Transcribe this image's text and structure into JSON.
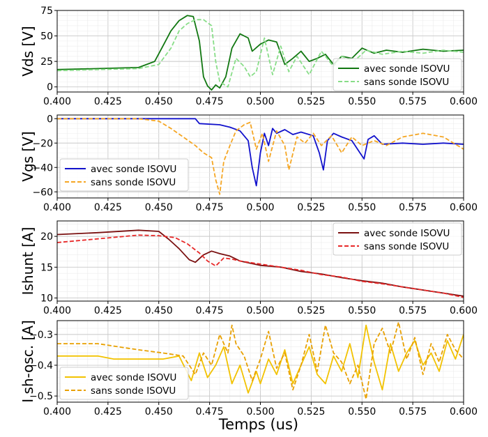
{
  "figure": {
    "xlabel": "Temps (us)",
    "xticks": [
      "0.400",
      "0.425",
      "0.450",
      "0.475",
      "0.500",
      "0.525",
      "0.550",
      "0.575",
      "0.600"
    ]
  },
  "chart_data": [
    {
      "type": "line",
      "ylabel": "Vds [V]",
      "xlim": [
        0.4,
        0.6
      ],
      "ylim": [
        -5,
        75
      ],
      "yticks": [
        "0",
        "25",
        "50",
        "75"
      ],
      "grid": true,
      "legend_position": "right",
      "series": [
        {
          "name": "avec sonde ISOVU",
          "color": "#117711",
          "dash": "solid",
          "x": [
            0.4,
            0.42,
            0.44,
            0.448,
            0.452,
            0.456,
            0.46,
            0.464,
            0.467,
            0.47,
            0.472,
            0.474,
            0.476,
            0.478,
            0.48,
            0.483,
            0.486,
            0.49,
            0.494,
            0.496,
            0.5,
            0.504,
            0.508,
            0.512,
            0.516,
            0.52,
            0.524,
            0.528,
            0.532,
            0.536,
            0.54,
            0.545,
            0.55,
            0.556,
            0.562,
            0.57,
            0.58,
            0.59,
            0.6
          ],
          "y": [
            17,
            18,
            19,
            25,
            40,
            55,
            65,
            70,
            69,
            45,
            10,
            1,
            -3,
            2,
            -1,
            10,
            38,
            52,
            48,
            35,
            42,
            46,
            44,
            22,
            28,
            35,
            25,
            28,
            32,
            22,
            30,
            28,
            38,
            33,
            36,
            34,
            37,
            35,
            36
          ]
        },
        {
          "name": "sans sonde ISOVU",
          "color": "#88dd88",
          "dash": "dashed",
          "x": [
            0.4,
            0.44,
            0.45,
            0.456,
            0.46,
            0.464,
            0.468,
            0.472,
            0.476,
            0.478,
            0.48,
            0.484,
            0.488,
            0.492,
            0.495,
            0.498,
            0.502,
            0.506,
            0.51,
            0.514,
            0.518,
            0.524,
            0.53,
            0.536,
            0.54,
            0.546,
            0.552,
            0.56,
            0.57,
            0.58,
            0.59,
            0.6
          ],
          "y": [
            16,
            18,
            22,
            38,
            55,
            62,
            66,
            66,
            60,
            25,
            5,
            0,
            28,
            20,
            10,
            15,
            48,
            12,
            40,
            15,
            30,
            12,
            35,
            20,
            30,
            25,
            36,
            32,
            35,
            33,
            36,
            34
          ]
        }
      ]
    },
    {
      "type": "line",
      "ylabel": "Vgs [V]",
      "xlim": [
        0.4,
        0.6
      ],
      "ylim": [
        -65,
        3
      ],
      "yticks": [
        "0",
        "−20",
        "−40",
        "−60"
      ],
      "grid": true,
      "legend_position": "lower-left",
      "series": [
        {
          "name": "avec sonde ISOVU",
          "color": "#1111cc",
          "dash": "solid",
          "x": [
            0.4,
            0.44,
            0.46,
            0.468,
            0.47,
            0.48,
            0.485,
            0.49,
            0.494,
            0.496,
            0.498,
            0.5,
            0.502,
            0.504,
            0.506,
            0.508,
            0.512,
            0.516,
            0.52,
            0.526,
            0.529,
            0.531,
            0.533,
            0.536,
            0.54,
            0.545,
            0.549,
            0.551,
            0.553,
            0.556,
            0.56,
            0.57,
            0.58,
            0.59,
            0.6
          ],
          "y": [
            0,
            0,
            0,
            0,
            -4,
            -5,
            -7,
            -10,
            -18,
            -40,
            -55,
            -28,
            -12,
            -22,
            -8,
            -12,
            -9,
            -13,
            -11,
            -14,
            -28,
            -42,
            -18,
            -12,
            -15,
            -18,
            -28,
            -33,
            -17,
            -14,
            -21,
            -20,
            -21,
            -20,
            -21
          ]
        },
        {
          "name": "sans sonde ISOVU",
          "color": "#f5a623",
          "dash": "dashed",
          "x": [
            0.4,
            0.44,
            0.45,
            0.456,
            0.462,
            0.468,
            0.472,
            0.476,
            0.478,
            0.48,
            0.482,
            0.485,
            0.488,
            0.492,
            0.495,
            0.498,
            0.501,
            0.504,
            0.508,
            0.512,
            0.514,
            0.518,
            0.522,
            0.526,
            0.53,
            0.535,
            0.54,
            0.545,
            0.55,
            0.556,
            0.562,
            0.57,
            0.58,
            0.59,
            0.6
          ],
          "y": [
            0,
            0,
            -2,
            -8,
            -15,
            -22,
            -28,
            -32,
            -50,
            -62,
            -35,
            -22,
            -10,
            -5,
            -3,
            -25,
            -12,
            -35,
            -10,
            -22,
            -42,
            -15,
            -20,
            -12,
            -22,
            -14,
            -28,
            -15,
            -22,
            -18,
            -22,
            -15,
            -12,
            -15,
            -25
          ]
        }
      ]
    },
    {
      "type": "line",
      "ylabel": "Ishunt [A]",
      "xlim": [
        0.4,
        0.6
      ],
      "ylim": [
        9.5,
        22.5
      ],
      "yticks": [
        "10",
        "15",
        "20"
      ],
      "grid": true,
      "legend_position": "top-right",
      "series": [
        {
          "name": "avec sonde ISOVU",
          "color": "#7a1010",
          "dash": "solid",
          "x": [
            0.4,
            0.42,
            0.44,
            0.45,
            0.455,
            0.46,
            0.465,
            0.468,
            0.472,
            0.476,
            0.48,
            0.485,
            0.49,
            0.5,
            0.51,
            0.52,
            0.53,
            0.54,
            0.55,
            0.56,
            0.57,
            0.58,
            0.59,
            0.6
          ],
          "y": [
            20.3,
            20.6,
            21.0,
            20.8,
            19.5,
            18.0,
            16.2,
            15.8,
            17.0,
            17.6,
            17.2,
            16.8,
            16.0,
            15.3,
            15.0,
            14.3,
            13.9,
            13.3,
            12.8,
            12.4,
            11.8,
            11.3,
            10.8,
            10.3
          ]
        },
        {
          "name": "sans sonde ISOVU",
          "color": "#e82828",
          "dash": "dashed",
          "x": [
            0.4,
            0.42,
            0.44,
            0.45,
            0.458,
            0.464,
            0.47,
            0.474,
            0.478,
            0.482,
            0.486,
            0.49,
            0.5,
            0.51,
            0.52,
            0.53,
            0.54,
            0.55,
            0.56,
            0.57,
            0.58,
            0.59,
            0.6
          ],
          "y": [
            19.0,
            19.6,
            20.2,
            20.1,
            19.8,
            18.8,
            17.3,
            16.0,
            15.2,
            16.5,
            16.3,
            16.0,
            15.5,
            15.0,
            14.5,
            13.8,
            13.4,
            12.7,
            12.3,
            11.8,
            11.3,
            10.8,
            10.1
          ]
        }
      ]
    },
    {
      "type": "line",
      "ylabel": "I sh-osc. [A]",
      "xlim": [
        0.4,
        0.6
      ],
      "ylim": [
        -0.52,
        -0.255
      ],
      "yticks": [
        "−0.3",
        "−0.4",
        "−0.5"
      ],
      "grid": true,
      "legend_position": "lower-left",
      "series": [
        {
          "name": "avec sonde ISOVU",
          "color": "#f2c200",
          "dash": "solid",
          "x": [
            0.4,
            0.41,
            0.42,
            0.428,
            0.436,
            0.444,
            0.452,
            0.46,
            0.466,
            0.47,
            0.474,
            0.478,
            0.482,
            0.486,
            0.49,
            0.494,
            0.498,
            0.5,
            0.504,
            0.508,
            0.512,
            0.516,
            0.52,
            0.524,
            0.528,
            0.532,
            0.536,
            0.54,
            0.544,
            0.548,
            0.552,
            0.556,
            0.56,
            0.564,
            0.568,
            0.572,
            0.576,
            0.58,
            0.584,
            0.588,
            0.592,
            0.596,
            0.6
          ],
          "y": [
            -0.37,
            -0.37,
            -0.37,
            -0.38,
            -0.38,
            -0.38,
            -0.38,
            -0.37,
            -0.45,
            -0.36,
            -0.44,
            -0.4,
            -0.34,
            -0.46,
            -0.4,
            -0.49,
            -0.42,
            -0.46,
            -0.38,
            -0.43,
            -0.35,
            -0.46,
            -0.4,
            -0.34,
            -0.43,
            -0.46,
            -0.37,
            -0.42,
            -0.33,
            -0.44,
            -0.27,
            -0.39,
            -0.48,
            -0.33,
            -0.42,
            -0.36,
            -0.32,
            -0.4,
            -0.36,
            -0.42,
            -0.32,
            -0.38,
            -0.3
          ]
        },
        {
          "name": "sans sonde ISOVU",
          "color": "#e8a000",
          "dash": "dashed",
          "x": [
            0.4,
            0.42,
            0.44,
            0.452,
            0.462,
            0.468,
            0.472,
            0.476,
            0.48,
            0.484,
            0.486,
            0.488,
            0.492,
            0.496,
            0.5,
            0.504,
            0.508,
            0.512,
            0.516,
            0.52,
            0.524,
            0.528,
            0.532,
            0.536,
            0.54,
            0.544,
            0.548,
            0.552,
            0.556,
            0.56,
            0.564,
            0.568,
            0.572,
            0.576,
            0.58,
            0.584,
            0.588,
            0.592,
            0.596,
            0.6
          ],
          "y": [
            -0.33,
            -0.33,
            -0.35,
            -0.36,
            -0.37,
            -0.43,
            -0.36,
            -0.4,
            -0.3,
            -0.36,
            -0.27,
            -0.33,
            -0.37,
            -0.45,
            -0.38,
            -0.29,
            -0.41,
            -0.36,
            -0.48,
            -0.4,
            -0.3,
            -0.42,
            -0.27,
            -0.36,
            -0.39,
            -0.46,
            -0.4,
            -0.51,
            -0.33,
            -0.28,
            -0.36,
            -0.26,
            -0.38,
            -0.31,
            -0.43,
            -0.33,
            -0.39,
            -0.3,
            -0.35,
            -0.38
          ]
        }
      ]
    }
  ]
}
